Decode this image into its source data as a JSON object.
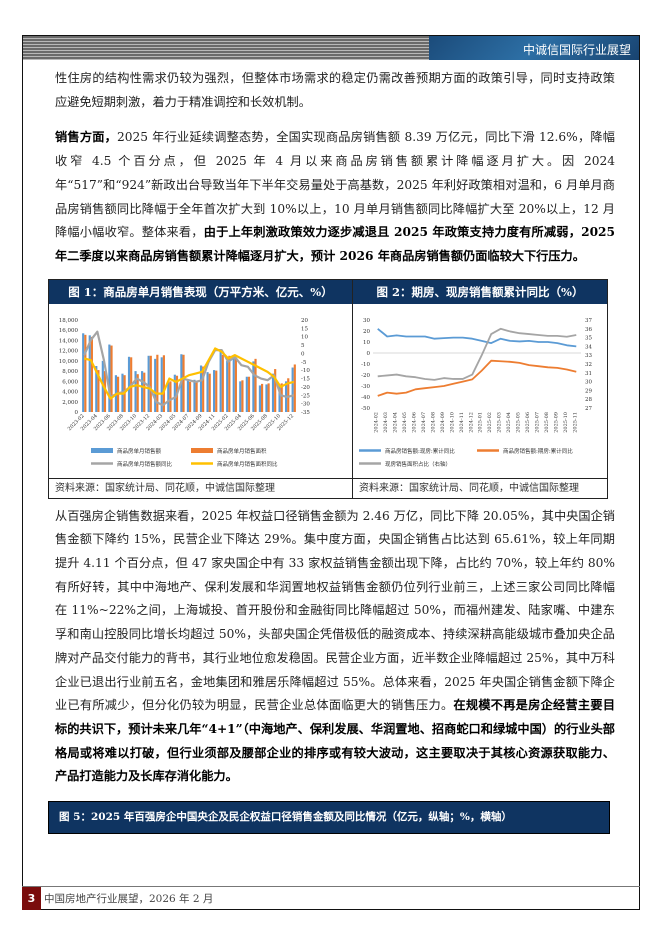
{
  "header": {
    "brand": "中诚信国际行业展望"
  },
  "para1": "性住房的结构性需求仍较为强烈，但整体市场需求的稳定仍需改善预期方面的政策引导，同时支持政策应避免短期刺激，着力于精准调控和长效机制。",
  "para2": {
    "lead": "销售方面，",
    "body": "2025 年行业延续调整态势，全国实现商品房销售额 8.39 万亿元，同比下滑 12.6%，降幅收窄 4.5 个百分点，但 2025 年 4 月以来商品房销售额累计降幅逐月扩大。因 2024 年“517”和“924”新政出台导致当年下半年交易量处于高基数，2025 年利好政策相对温和，6 月单月商品房销售额同比降幅于全年首次扩大到 10%以上，10 月单月销售额同比降幅扩大至 20%以上，12 月降幅小幅收窄。整体来看，",
    "bold": "由于上年刺激政策效力逐步减退且 2025 年政策支持力度有所减弱，2025 年二季度以来商品房销售额累计降幅逐月扩大，预计 2026 年商品房销售额仍面临较大下行压力。"
  },
  "para3": {
    "body": "从百强房企销售数据来看，2025 年权益口径销售金额为 2.46 万亿，同比下降 20.05%，其中央国企销售金额下降约 15%，民营企业下降达 29%。集中度方面，央国企销售占比达到 65.61%，较上年同期提升 4.11 个百分点，但 47 家央国企中有 33 家权益销售金额出现下降，占比约 70%，较上年约 80%有所好转，其中中海地产、保利发展和华润置地权益销售金额仍位列行业前三，上述三家公司同比降幅在 11%~22%之间，上海城投、首开股份和金融街同比降幅超过 50%，而福州建发、陆家嘴、中建东孚和南山控股同比增长均超过 50%，头部央国企凭借极低的融资成本、持续深耕高能级城市叠加央企品牌对产品交付能力的背书，其行业地位愈发稳固。民营企业方面，近半数企业降幅超过 25%，其中万科企业已退出行业前五名，金地集团和雅居乐降幅超过 55%。总体来看，2025 年央国企销售金额下降企业已有所减少，但分化仍较为明显，民营企业总体面临更大的销售压力。",
    "bold": "在规模不再是房企经营主要目标的共识下，预计未来几年“4+1”（中海地产、保利发展、华润置地、招商蛇口和绿城中国）的行业头部格局或将难以打破，但行业须部及腰部企业的排序或有较大波动，这主要取决于其核心资源获取能力、产品打造能力及长库存消化能力。"
  },
  "fig1": {
    "title": "图 1：商品房单月销售表现（万平方米、亿元、%）",
    "source": "资料来源：国家统计局、同花顺，中诚信国际整理"
  },
  "fig2": {
    "title": "图 2：期房、现房销售额累计同比（%）",
    "source": "资料来源：国家统计局、同花顺，中诚信国际整理"
  },
  "fig5": {
    "title": "图 5：2025 年百强房企中国央企及民企权益口径销售金额及同比情况（亿元，纵轴；%，横轴）"
  },
  "footer": {
    "page": "3",
    "text": "中国房地产行业展望，2026 年 2 月"
  },
  "chart_data": [
    {
      "type": "bar+line",
      "ylim": [
        0,
        18000
      ],
      "y2lim": [
        -35,
        20
      ],
      "yticks": [
        "0",
        "2,000",
        "4,000",
        "6,000",
        "8,000",
        "10,000",
        "12,000",
        "14,000",
        "16,000",
        "18,000"
      ],
      "y2ticks": [
        "-35",
        "-30",
        "-25",
        "-20",
        "-15",
        "-10",
        "-5",
        "0",
        "5",
        "10",
        "15",
        "20"
      ],
      "categories": [
        "2023-02",
        "2023-03",
        "2023-04",
        "2023-05",
        "2023-06",
        "2023-07",
        "2023-08",
        "2023-09",
        "2023-10",
        "2023-11",
        "2023-12",
        "2024-02",
        "2024-03",
        "2024-04",
        "2024-05",
        "2024-06",
        "2024-07",
        "2024-08",
        "2024-09",
        "2024-10",
        "2024-11",
        "2024-12",
        "2025-02",
        "2025-03",
        "2025-04",
        "2025-05",
        "2025-06",
        "2025-07",
        "2025-08",
        "2025-09",
        "2025-10",
        "2025-11",
        "2025-12"
      ],
      "tick_labels": [
        "2023-02",
        "2023-04",
        "2023-06",
        "2023-08",
        "2023-10",
        "2023-12",
        "2024-03",
        "2024-05",
        "2024-07",
        "2024-09",
        "2024-11",
        "2025-02",
        "2025-04",
        "2025-06",
        "2025-08",
        "2025-10",
        "2025-12"
      ],
      "series": [
        {
          "name": "商品房单月销售额",
          "kind": "bar",
          "axis": "left",
          "color": "#5b9bd5",
          "values": [
            15400,
            15000,
            9000,
            10000,
            13200,
            7200,
            7500,
            10800,
            8000,
            8000,
            11000,
            10400,
            10700,
            5800,
            7300,
            11300,
            6200,
            6300,
            9100,
            7800,
            8200,
            12000,
            10000,
            10500,
            6000,
            6900,
            9900,
            5200,
            5400,
            7500,
            5100,
            6000,
            8700
          ]
        },
        {
          "name": "商品房单月销售面积",
          "kind": "bar",
          "axis": "left",
          "color": "#ed7d31",
          "values": [
            15100,
            14700,
            8200,
            8000,
            13000,
            6900,
            7200,
            10700,
            7400,
            7700,
            11000,
            11200,
            11100,
            6000,
            7100,
            11200,
            5900,
            6100,
            8900,
            7500,
            8100,
            11200,
            11000,
            10500,
            6200,
            6900,
            10400,
            5500,
            5600,
            8400,
            5600,
            6600,
            9300
          ]
        },
        {
          "name": "商品房单月销售额同比",
          "kind": "line",
          "axis": "right",
          "color": "#a5a5a5",
          "values": [
            -1,
            8,
            13,
            -4,
            -26,
            -24,
            -23,
            -20,
            -15,
            -17,
            -20,
            -29,
            -31,
            -28,
            -26,
            -15,
            -16,
            -17,
            -16,
            -5,
            2,
            2,
            -5,
            -2,
            -7,
            -8,
            -13,
            -15,
            -16,
            -13,
            -25,
            -26,
            -25
          ]
        },
        {
          "name": "商品房单月销售面积同比",
          "kind": "line",
          "axis": "right",
          "color": "#ffc000",
          "values": [
            -3,
            -4,
            -12,
            -20,
            -27,
            -24,
            -24,
            -20,
            -19,
            -20,
            -21,
            -24,
            -24,
            -15,
            -17,
            -15,
            -13,
            -12,
            -11,
            -4,
            3,
            1,
            -3,
            -1,
            -3,
            -5,
            -7,
            -9,
            -11,
            -14,
            -20,
            -18,
            -17
          ]
        }
      ]
    },
    {
      "type": "line",
      "ylim": [
        -50,
        30
      ],
      "y2lim": [
        27,
        37
      ],
      "yticks": [
        "-50",
        "-40",
        "-30",
        "-20",
        "-10",
        "0",
        "10",
        "20",
        "30"
      ],
      "y2ticks": [
        "27",
        "28",
        "29",
        "30",
        "31",
        "32",
        "33",
        "34",
        "35",
        "36",
        "37"
      ],
      "categories": [
        "2024-02",
        "2024-03",
        "2024-04",
        "2024-05",
        "2024-06",
        "2024-07",
        "2024-08",
        "2024-09",
        "2024-10",
        "2024-11",
        "2024-12",
        "2025-01",
        "2025-02",
        "2025-03",
        "2025-04",
        "2025-05",
        "2025-06",
        "2025-07",
        "2025-08",
        "2025-09",
        "2025-10",
        "2025-11"
      ],
      "series": [
        {
          "name": "商品房销售额:现房:累计同比",
          "axis": "left",
          "color": "#5b9bd5",
          "values": [
            22,
            15,
            16,
            15,
            15,
            15,
            13,
            13.5,
            14,
            14,
            13,
            11,
            9,
            13,
            11,
            10.5,
            11,
            10,
            10,
            9,
            7,
            6
          ]
        },
        {
          "name": "商品房销售额:期房:累计同比",
          "axis": "left",
          "color": "#ed7d31",
          "values": [
            -39,
            -36,
            -37,
            -36,
            -33,
            -32,
            -31,
            -30,
            -28,
            -26,
            -24,
            -16,
            -7,
            -7.5,
            -8,
            -9,
            -11,
            -12,
            -13,
            -13.5,
            -15,
            -17
          ]
        },
        {
          "name": "现房销售面积占比（右轴）",
          "axis": "right",
          "color": "#a5a5a5",
          "values": [
            30.6,
            30.7,
            30.8,
            30.6,
            30.5,
            30.3,
            30.2,
            30.4,
            30.3,
            30.3,
            30.8,
            33,
            35.4,
            36,
            35.7,
            35.5,
            35.4,
            35.3,
            35.2,
            35.2,
            35.1,
            35.3
          ]
        }
      ]
    }
  ]
}
